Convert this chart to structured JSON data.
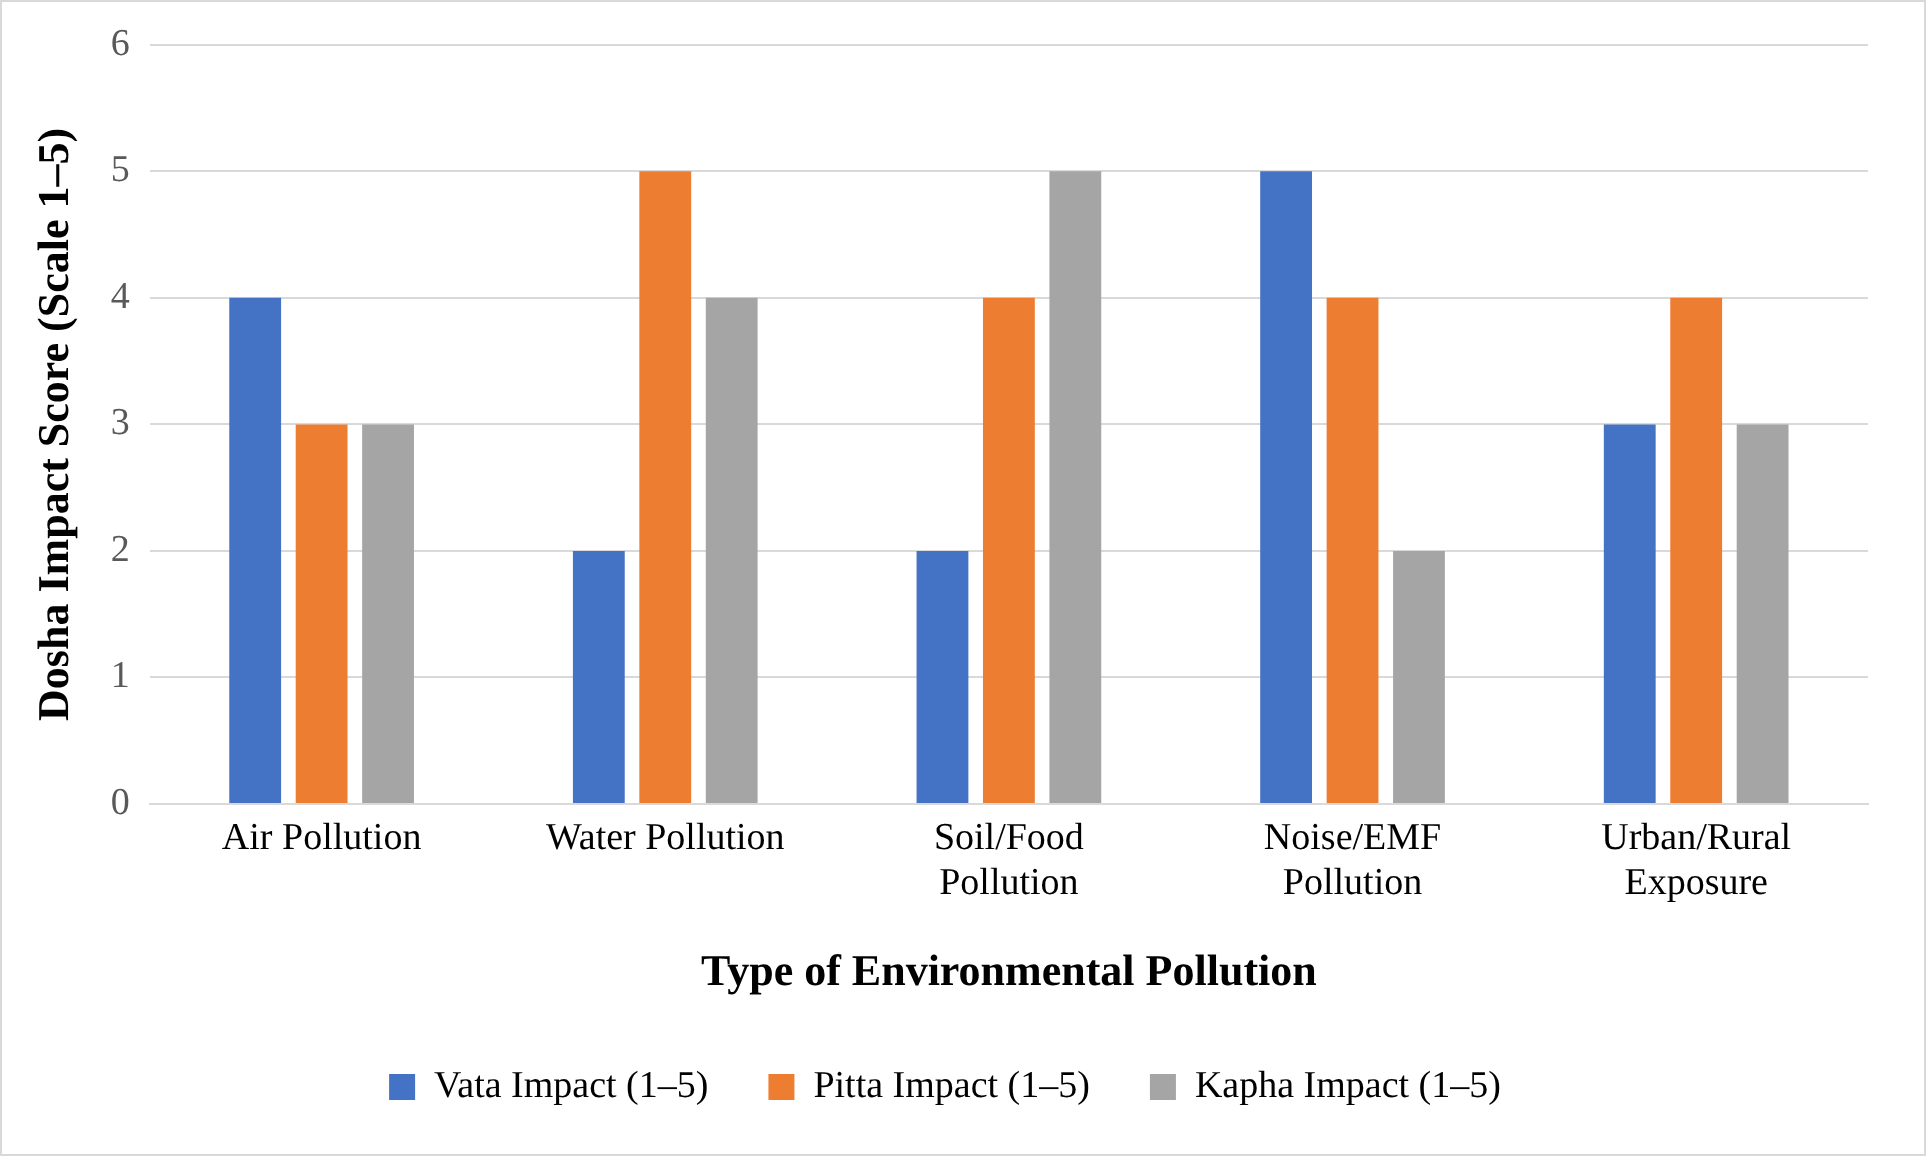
{
  "chart_data": {
    "type": "bar",
    "xlabel": "Type of Environmental Pollution",
    "ylabel": "Dosha Impact Score (Scale 1–5)",
    "categories": [
      "Air Pollution",
      "Water Pollution",
      "Soil/Food\nPollution",
      "Noise/EMF\nPollution",
      "Urban/Rural\nExposure"
    ],
    "series": [
      {
        "name": "Vata Impact (1–5)",
        "color": "#4472c4",
        "values": [
          4,
          2,
          2,
          5,
          3
        ]
      },
      {
        "name": "Pitta Impact (1–5)",
        "color": "#ed7d31",
        "values": [
          3,
          5,
          4,
          4,
          4
        ]
      },
      {
        "name": "Kapha Impact (1–5)",
        "color": "#a5a5a5",
        "values": [
          3,
          4,
          5,
          2,
          3
        ]
      }
    ],
    "ylim": [
      0,
      6
    ],
    "yticks": [
      0,
      1,
      2,
      3,
      4,
      5,
      6
    ],
    "grid": "y",
    "legend": "bottom"
  }
}
